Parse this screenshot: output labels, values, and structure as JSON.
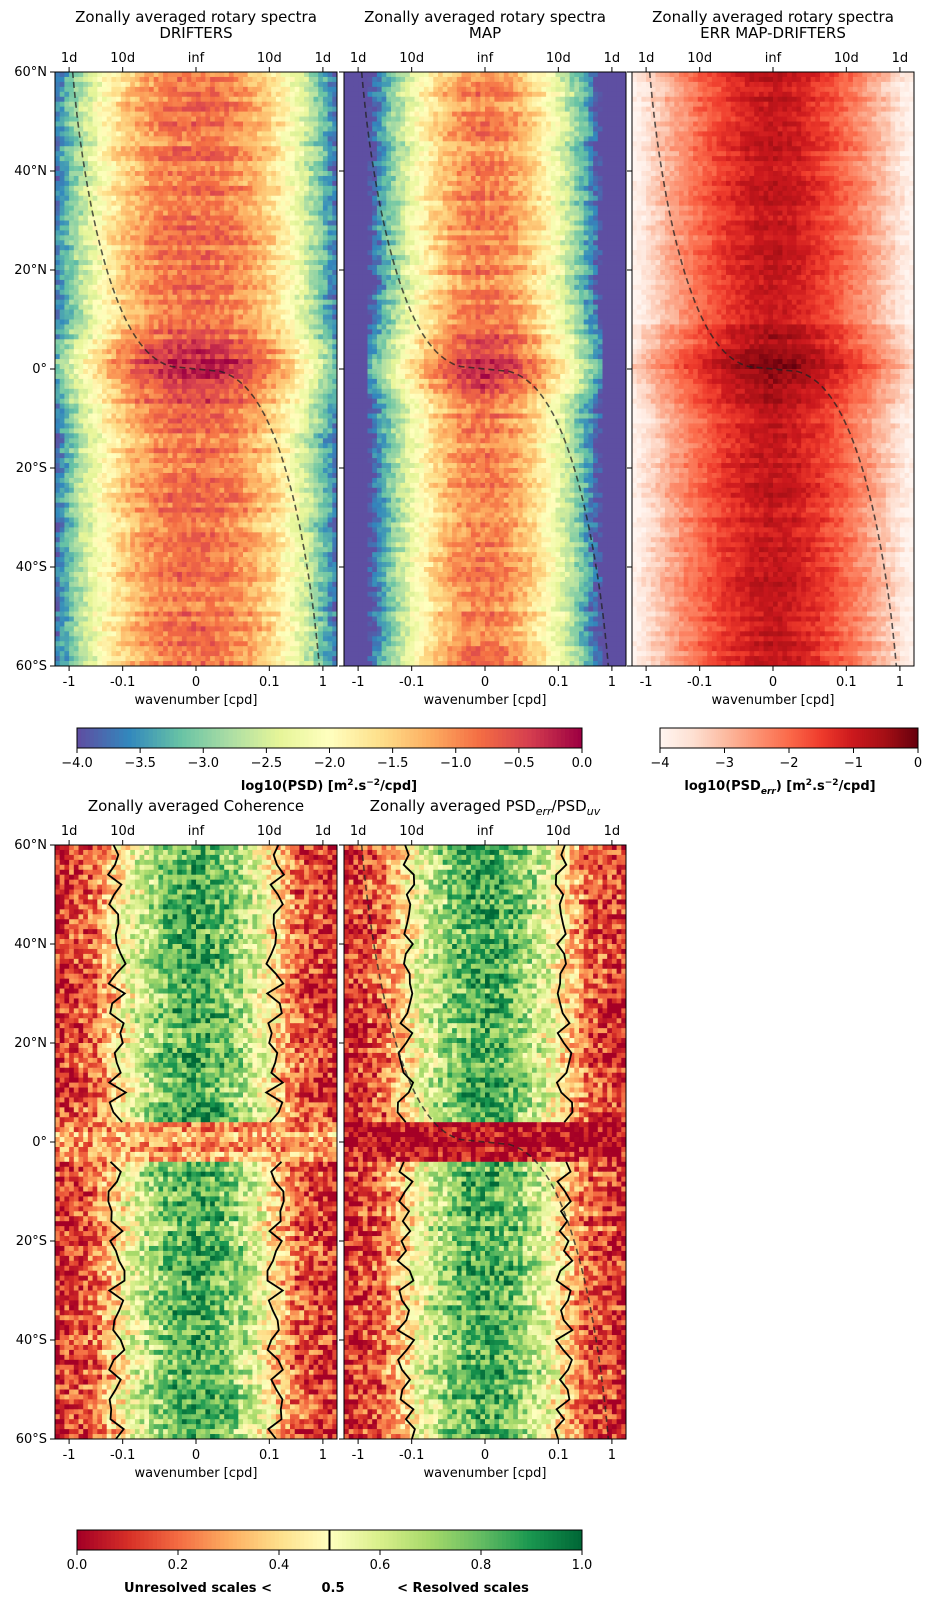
{
  "chart_data": [
    {
      "type": "heatmap",
      "title": "Zonally averaged rotary spectra",
      "subtitle": "DRIFTERS",
      "xlabel": "wavenumber [cpd]",
      "x_ticks": [
        "-1",
        "-0.1",
        "0",
        "0.1",
        "1"
      ],
      "top_ticks": [
        "1d",
        "10d",
        "inf",
        "10d",
        "1d"
      ],
      "y_ticks": [
        "60°N",
        "40°N",
        "20°N",
        "0°",
        "20°S",
        "40°S",
        "60°S"
      ],
      "ylim": [
        -60,
        60
      ],
      "colormap": "Spectral_r",
      "clim": [
        -4.0,
        0.0
      ],
      "dashed_curve": "inertial frequency",
      "approx_rows": [
        {
          "lat": 55,
          "values": [
            -3.6,
            -2.6,
            -1.6,
            -1.1,
            -1.0,
            -1.1,
            -1.6,
            -2.6,
            -3.6
          ]
        },
        {
          "lat": 30,
          "values": [
            -3.5,
            -2.4,
            -1.5,
            -1.0,
            -0.9,
            -1.0,
            -1.5,
            -2.4,
            -3.5
          ]
        },
        {
          "lat": 5,
          "values": [
            -3.8,
            -1.9,
            -0.5,
            -0.1,
            -0.3,
            -0.1,
            -0.5,
            -1.9,
            -3.8
          ]
        },
        {
          "lat": -30,
          "values": [
            -3.5,
            -2.3,
            -1.4,
            -0.9,
            -0.8,
            -0.9,
            -1.4,
            -2.3,
            -3.5
          ]
        },
        {
          "lat": -55,
          "values": [
            -3.6,
            -2.5,
            -1.6,
            -1.1,
            -1.0,
            -1.1,
            -1.6,
            -2.5,
            -3.6
          ]
        }
      ]
    },
    {
      "type": "heatmap",
      "title": "Zonally averaged rotary spectra",
      "subtitle": "MAP",
      "xlabel": "wavenumber [cpd]",
      "x_ticks": [
        "-1",
        "-0.1",
        "0",
        "0.1",
        "1"
      ],
      "top_ticks": [
        "1d",
        "10d",
        "inf",
        "10d",
        "1d"
      ],
      "y_ticks": [
        "60°N",
        "40°N",
        "20°N",
        "0°",
        "20°S",
        "40°S",
        "60°S"
      ],
      "ylim": [
        -60,
        60
      ],
      "colormap": "Spectral_r",
      "clim": [
        -4.0,
        0.0
      ],
      "dashed_curve": "inertial frequency",
      "approx_rows": [
        {
          "lat": 55,
          "values": [
            -4.0,
            -3.0,
            -1.8,
            -1.2,
            -1.0,
            -1.2,
            -1.8,
            -3.0,
            -4.0
          ]
        },
        {
          "lat": 30,
          "values": [
            -4.0,
            -2.8,
            -1.6,
            -1.1,
            -1.0,
            -1.1,
            -1.6,
            -2.8,
            -4.0
          ]
        },
        {
          "lat": 5,
          "values": [
            -4.0,
            -2.0,
            -0.6,
            -0.2,
            -0.5,
            -0.2,
            -0.6,
            -2.0,
            -4.0
          ]
        },
        {
          "lat": -30,
          "values": [
            -4.0,
            -2.7,
            -1.5,
            -1.0,
            -0.9,
            -1.0,
            -1.5,
            -2.7,
            -4.0
          ]
        },
        {
          "lat": -55,
          "values": [
            -4.0,
            -2.9,
            -1.7,
            -1.2,
            -1.0,
            -1.2,
            -1.7,
            -2.9,
            -4.0
          ]
        }
      ]
    },
    {
      "type": "heatmap",
      "title": "Zonally averaged rotary spectra",
      "subtitle": "ERR MAP-DRIFTERS",
      "xlabel": "wavenumber [cpd]",
      "x_ticks": [
        "-1",
        "-0.1",
        "0",
        "0.1",
        "1"
      ],
      "top_ticks": [
        "1d",
        "10d",
        "inf",
        "10d",
        "1d"
      ],
      "y_ticks": [
        "60°N",
        "40°N",
        "20°N",
        "0°",
        "20°S",
        "40°S",
        "60°S"
      ],
      "ylim": [
        -60,
        60
      ],
      "colormap": "Reds",
      "clim": [
        -4,
        0
      ],
      "dashed_curve": "inertial frequency",
      "approx_rows": [
        {
          "lat": 55,
          "values": [
            -3.8,
            -2.6,
            -1.6,
            -1.2,
            -1.1,
            -1.2,
            -1.6,
            -2.6,
            -3.8
          ]
        },
        {
          "lat": 30,
          "values": [
            -3.7,
            -2.4,
            -1.4,
            -1.0,
            -1.0,
            -1.0,
            -1.4,
            -2.4,
            -3.7
          ]
        },
        {
          "lat": 0,
          "values": [
            -3.5,
            -1.8,
            -0.7,
            -0.2,
            -0.5,
            -0.2,
            -0.7,
            -1.8,
            -3.5
          ]
        },
        {
          "lat": -30,
          "values": [
            -3.7,
            -2.4,
            -1.4,
            -1.0,
            -1.0,
            -1.0,
            -1.4,
            -2.4,
            -3.7
          ]
        },
        {
          "lat": -55,
          "values": [
            -3.8,
            -2.6,
            -1.6,
            -1.2,
            -1.1,
            -1.2,
            -1.6,
            -2.6,
            -3.8
          ]
        }
      ]
    },
    {
      "type": "heatmap",
      "title": "Zonally averaged Coherence",
      "xlabel": "wavenumber [cpd]",
      "x_ticks": [
        "-1",
        "-0.1",
        "0",
        "0.1",
        "1"
      ],
      "top_ticks": [
        "1d",
        "10d",
        "inf",
        "10d",
        "1d"
      ],
      "y_ticks": [
        "60°N",
        "40°N",
        "20°N",
        "0°",
        "20°S",
        "40°S",
        "60°S"
      ],
      "ylim": [
        -60,
        60
      ],
      "colormap": "RdYlGn",
      "clim": [
        0.0,
        1.0
      ],
      "contour_level": 0.5,
      "approx_rows": [
        {
          "lat": 50,
          "values": [
            0.1,
            0.3,
            0.6,
            0.7,
            0.7,
            0.7,
            0.6,
            0.3,
            0.1
          ]
        },
        {
          "lat": 20,
          "values": [
            0.1,
            0.4,
            0.8,
            0.85,
            0.85,
            0.85,
            0.8,
            0.4,
            0.1
          ]
        },
        {
          "lat": 0,
          "values": [
            0.05,
            0.2,
            0.3,
            0.4,
            0.4,
            0.4,
            0.3,
            0.2,
            0.05
          ]
        },
        {
          "lat": -20,
          "values": [
            0.1,
            0.4,
            0.75,
            0.8,
            0.8,
            0.8,
            0.75,
            0.4,
            0.1
          ]
        },
        {
          "lat": -50,
          "values": [
            0.1,
            0.35,
            0.75,
            0.8,
            0.8,
            0.8,
            0.75,
            0.35,
            0.1
          ]
        }
      ]
    },
    {
      "type": "heatmap",
      "title": "Zonally averaged PSD",
      "title_sub1": "err",
      "title_mid": "/PSD",
      "title_sub2": "uv",
      "xlabel": "wavenumber [cpd]",
      "x_ticks": [
        "-1",
        "-0.1",
        "0",
        "0.1",
        "1"
      ],
      "top_ticks": [
        "1d",
        "10d",
        "inf",
        "10d",
        "1d"
      ],
      "y_ticks": [
        "60°N",
        "40°N",
        "20°N",
        "0°",
        "20°S",
        "40°S",
        "60°S"
      ],
      "ylim": [
        -60,
        60
      ],
      "colormap": "RdYlGn",
      "clim": [
        0.0,
        1.0
      ],
      "contour_level": 0.5,
      "dashed_curve": "inertial frequency",
      "approx_rows": [
        {
          "lat": 50,
          "values": [
            0.05,
            0.2,
            0.55,
            0.7,
            0.7,
            0.7,
            0.55,
            0.2,
            0.05
          ]
        },
        {
          "lat": 20,
          "values": [
            0.05,
            0.3,
            0.75,
            0.8,
            0.8,
            0.8,
            0.75,
            0.3,
            0.05
          ]
        },
        {
          "lat": 0,
          "values": [
            0.0,
            0.0,
            0.05,
            0.1,
            0.1,
            0.1,
            0.05,
            0.0,
            0.0
          ]
        },
        {
          "lat": -20,
          "values": [
            0.05,
            0.3,
            0.7,
            0.8,
            0.8,
            0.8,
            0.7,
            0.3,
            0.05
          ]
        },
        {
          "lat": -50,
          "values": [
            0.05,
            0.25,
            0.7,
            0.8,
            0.8,
            0.8,
            0.7,
            0.25,
            0.05
          ]
        }
      ]
    }
  ],
  "colorbars": {
    "psd": {
      "ticks": [
        "−4.0",
        "−3.5",
        "−3.0",
        "−2.5",
        "−2.0",
        "−1.5",
        "−1.0",
        "−0.5",
        "0.0"
      ],
      "label_main": "log10(PSD) [m",
      "label_sup": "2",
      "label_mid": ".s",
      "label_sup2": "−2",
      "label_end": "/cpd]"
    },
    "err": {
      "ticks": [
        "−4",
        "−3",
        "−2",
        "−1",
        "0"
      ],
      "label_main": "log10(PSD",
      "label_sub": "err",
      "label_mid": ") [m",
      "label_sup": "2",
      "label_mid2": ".s",
      "label_sup2": "−2",
      "label_end": "/cpd]"
    },
    "coh": {
      "ticks": [
        "0.0",
        "0.2",
        "0.4",
        "0.6",
        "0.8",
        "1.0"
      ],
      "label_left": "Unresolved scales <",
      "label_center": "0.5",
      "label_right": "< Resolved scales"
    }
  }
}
